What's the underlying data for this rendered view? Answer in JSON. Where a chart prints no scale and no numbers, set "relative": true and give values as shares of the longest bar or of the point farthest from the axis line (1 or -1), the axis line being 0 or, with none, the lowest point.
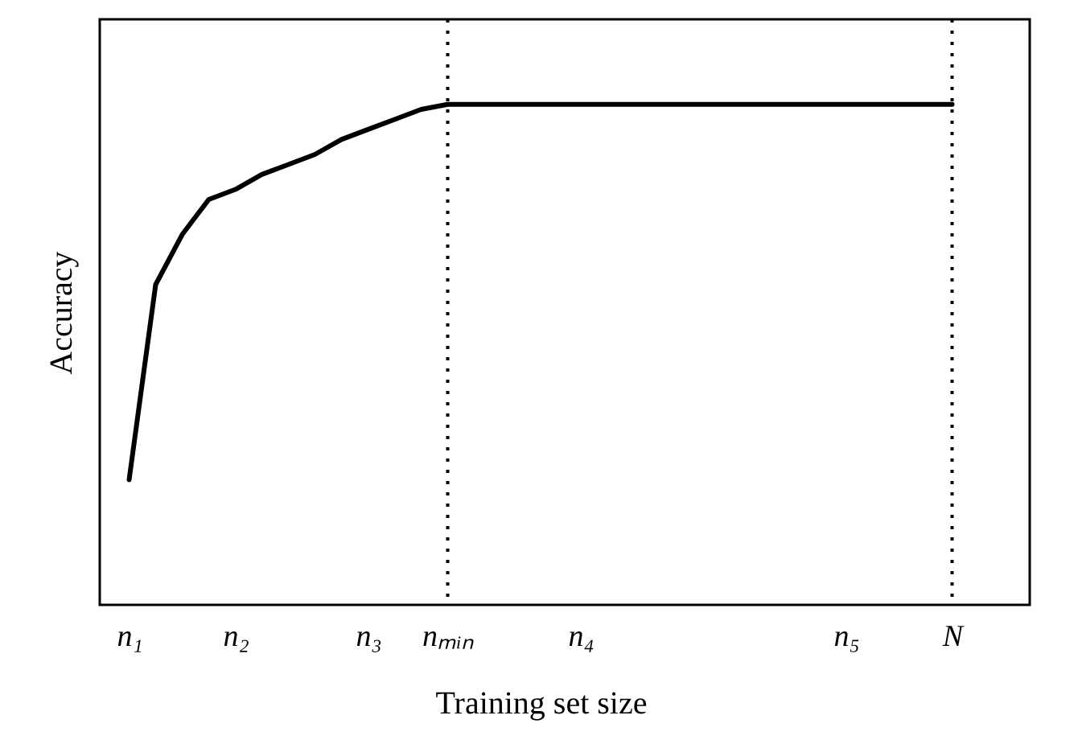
{
  "chart_data": {
    "type": "line",
    "xlabel": "Training set size",
    "ylabel": "Accuracy",
    "relative": true,
    "categories": [
      "n₁",
      null,
      null,
      null,
      "n₂",
      null,
      null,
      null,
      null,
      "n₃",
      null,
      null,
      "nₘᵢₙ",
      null,
      null,
      null,
      null,
      "n₄",
      null,
      null,
      null,
      null,
      null,
      null,
      null,
      null,
      null,
      "n₅",
      null,
      null,
      null,
      "N"
    ],
    "series": [
      {
        "color": "#000000",
        "values": [
          0.25,
          0.64,
          0.74,
          0.81,
          0.83,
          0.86,
          0.88,
          0.9,
          0.93,
          0.95,
          0.97,
          0.99,
          1,
          1,
          1,
          1,
          1,
          1,
          1,
          1,
          1,
          1,
          1,
          1,
          1,
          1,
          1,
          1,
          1,
          1,
          1,
          1
        ]
      }
    ],
    "ref_lines": [
      {
        "axis": "x",
        "value": "nₘᵢₙ",
        "line_style": "dotted",
        "color": "#000000"
      },
      {
        "axis": "x",
        "value": "N",
        "line_style": "dotted",
        "color": "#000000"
      }
    ]
  }
}
